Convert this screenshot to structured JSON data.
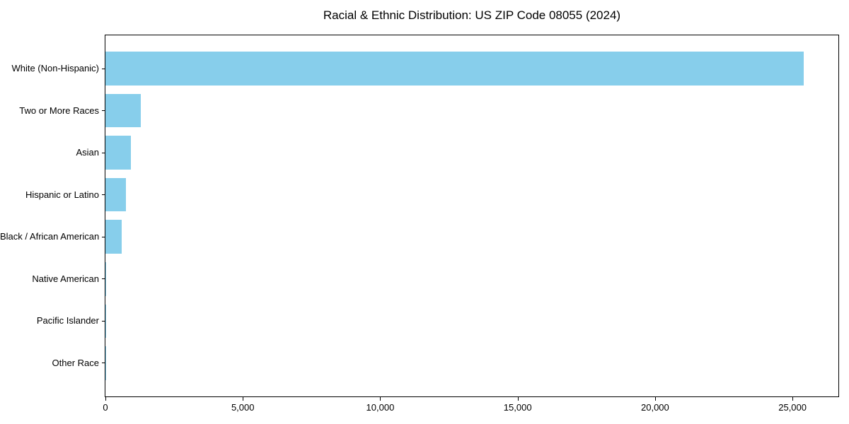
{
  "chart_data": {
    "type": "bar",
    "orientation": "horizontal",
    "title": "Racial & Ethnic Distribution: US ZIP Code 08055 (2024)",
    "categories": [
      "White (Non-Hispanic)",
      "Two or More Races",
      "Asian",
      "Hispanic or Latino",
      "Black / African American",
      "Native American",
      "Pacific Islander",
      "Other Race"
    ],
    "values": [
      25400,
      1280,
      920,
      750,
      600,
      30,
      15,
      10
    ],
    "xlabel": "",
    "ylabel": "",
    "xlim": [
      0,
      26670
    ],
    "xticks": [
      {
        "value": 0,
        "label": "0"
      },
      {
        "value": 5000,
        "label": "5,000"
      },
      {
        "value": 10000,
        "label": "10,000"
      },
      {
        "value": 15000,
        "label": "15,000"
      },
      {
        "value": 20000,
        "label": "20,000"
      },
      {
        "value": 25000,
        "label": "25,000"
      }
    ],
    "grid": false,
    "legend": null,
    "bar_color": "#87CEEB",
    "axis_color": "#000000",
    "text_color": "#000000",
    "background_color": "#FFFFFF"
  }
}
